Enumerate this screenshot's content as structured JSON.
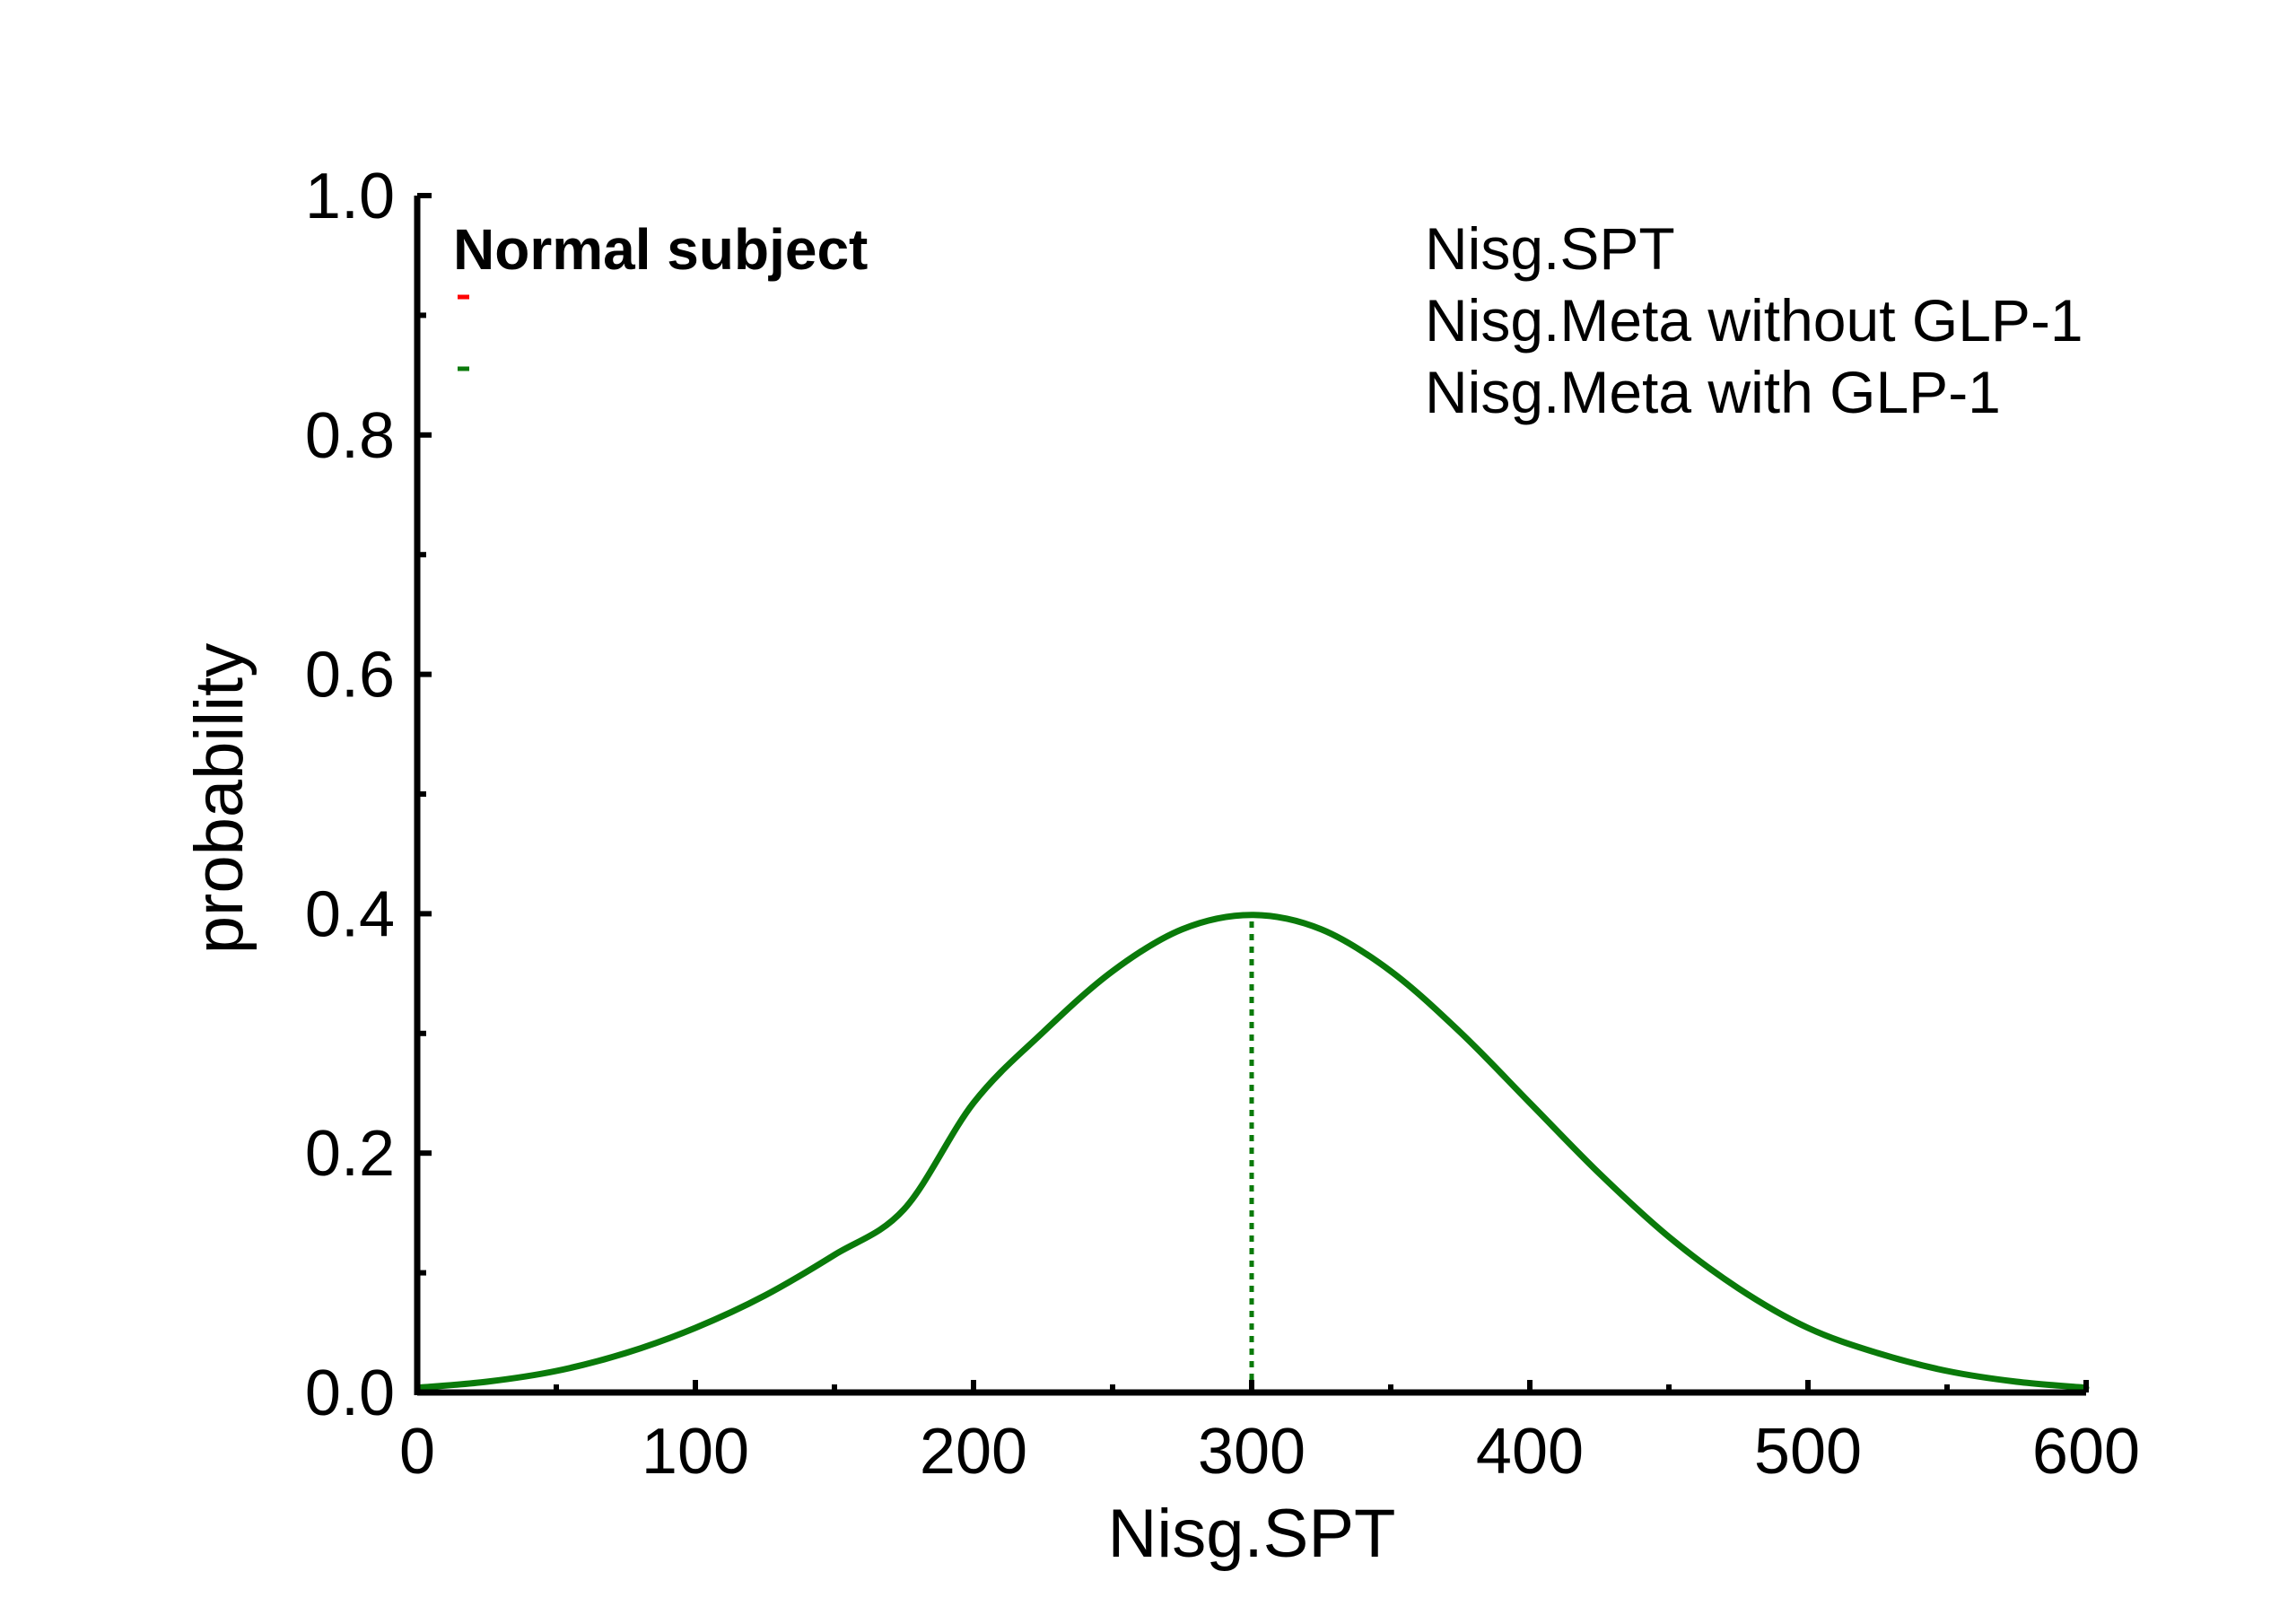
{
  "chart_data": {
    "type": "line",
    "title": "Normal subject",
    "xlabel": "Nisg.SPT",
    "ylabel": "probability",
    "xlim": [
      0,
      600
    ],
    "ylim": [
      0,
      1.0
    ],
    "x_ticks": [
      0,
      100,
      200,
      300,
      400,
      500,
      600
    ],
    "x_tick_labels": [
      "0",
      "100",
      "200",
      "300",
      "400",
      "500",
      "600"
    ],
    "y_ticks": [
      0.0,
      0.2,
      0.4,
      0.6,
      0.8,
      1.0
    ],
    "y_tick_labels": [
      "0.0",
      "0.2",
      "0.4",
      "0.6",
      "0.8",
      "1.0"
    ],
    "grid": false,
    "legend_position": "top-right",
    "series": [
      {
        "name": "Nisg.SPT",
        "color": "",
        "x": [],
        "y": []
      },
      {
        "name": "Nisg.Meta without GLP-1",
        "color": "#ff0000",
        "x": [],
        "y": []
      },
      {
        "name": "Nisg.Meta with GLP-1",
        "color": "#0a7a0a",
        "x": [
          0,
          25,
          50,
          75,
          100,
          125,
          150,
          175,
          200,
          225,
          250,
          275,
          300,
          325,
          350,
          375,
          400,
          425,
          450,
          475,
          500,
          525,
          550,
          575,
          600
        ],
        "y": [
          0.004,
          0.009,
          0.018,
          0.033,
          0.054,
          0.081,
          0.115,
          0.153,
          0.242,
          0.301,
          0.352,
          0.387,
          0.399,
          0.387,
          0.352,
          0.301,
          0.242,
          0.183,
          0.13,
          0.087,
          0.054,
          0.033,
          0.018,
          0.009,
          0.004
        ]
      }
    ],
    "annotations": [
      {
        "type": "vertical-dotted-line",
        "x": 300,
        "y_top": 0.399,
        "color": "#0a7a0a"
      }
    ]
  }
}
